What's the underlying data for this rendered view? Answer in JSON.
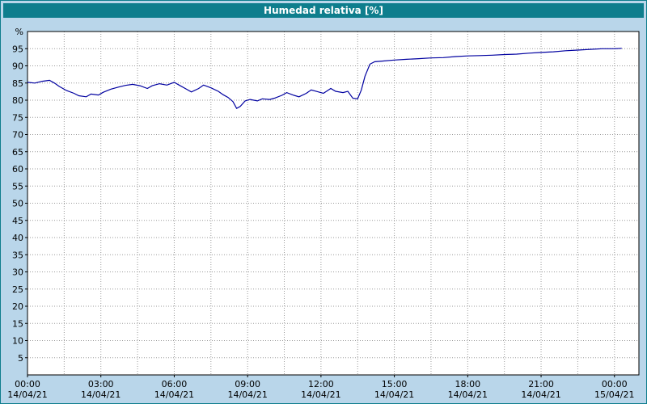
{
  "window": {
    "title": "Humedad relativa [%]"
  },
  "colors": {
    "titlebar": "#0e7e8d",
    "background": "#b9d6ea",
    "plot_bg": "#ffffff",
    "grid": "#9a9a9a",
    "axis": "#000000",
    "line": "#0000a0"
  },
  "chart_data": {
    "type": "line",
    "title": "Humedad relativa [%]",
    "ylabel": "%",
    "ylim": [
      0,
      100
    ],
    "xlim_hours": [
      0,
      25
    ],
    "grid": {
      "y_step": 5,
      "x_step_hours": 1.5,
      "style": "dotted"
    },
    "legend": "none",
    "y_ticks": [
      5,
      10,
      15,
      20,
      25,
      30,
      35,
      40,
      45,
      50,
      55,
      60,
      65,
      70,
      75,
      80,
      85,
      90,
      95
    ],
    "x_ticks": [
      {
        "hour": 0,
        "time": "00:00",
        "date": "14/04/21"
      },
      {
        "hour": 3,
        "time": "03:00",
        "date": "14/04/21"
      },
      {
        "hour": 6,
        "time": "06:00",
        "date": "14/04/21"
      },
      {
        "hour": 9,
        "time": "09:00",
        "date": "14/04/21"
      },
      {
        "hour": 12,
        "time": "12:00",
        "date": "14/04/21"
      },
      {
        "hour": 15,
        "time": "15:00",
        "date": "14/04/21"
      },
      {
        "hour": 18,
        "time": "18:00",
        "date": "14/04/21"
      },
      {
        "hour": 21,
        "time": "21:00",
        "date": "14/04/21"
      },
      {
        "hour": 24,
        "time": "00:00",
        "date": "15/04/21"
      }
    ],
    "series": [
      {
        "name": "Humedad relativa",
        "color": "#0000a0",
        "points": [
          [
            0,
            85.2
          ],
          [
            0.3,
            85.0
          ],
          [
            0.6,
            85.5
          ],
          [
            0.9,
            85.8
          ],
          [
            1.1,
            85.0
          ],
          [
            1.3,
            84.0
          ],
          [
            1.6,
            82.8
          ],
          [
            1.9,
            82.0
          ],
          [
            2.1,
            81.3
          ],
          [
            2.4,
            81.0
          ],
          [
            2.6,
            81.8
          ],
          [
            2.9,
            81.5
          ],
          [
            3.1,
            82.3
          ],
          [
            3.4,
            83.2
          ],
          [
            3.7,
            83.8
          ],
          [
            4.0,
            84.3
          ],
          [
            4.3,
            84.6
          ],
          [
            4.6,
            84.2
          ],
          [
            4.9,
            83.4
          ],
          [
            5.1,
            84.2
          ],
          [
            5.4,
            84.8
          ],
          [
            5.7,
            84.4
          ],
          [
            6.0,
            85.2
          ],
          [
            6.2,
            84.4
          ],
          [
            6.5,
            83.2
          ],
          [
            6.7,
            82.4
          ],
          [
            7.0,
            83.4
          ],
          [
            7.2,
            84.4
          ],
          [
            7.5,
            83.6
          ],
          [
            7.8,
            82.6
          ],
          [
            8.0,
            81.6
          ],
          [
            8.2,
            80.8
          ],
          [
            8.4,
            79.6
          ],
          [
            8.55,
            77.6
          ],
          [
            8.7,
            78.2
          ],
          [
            8.9,
            79.8
          ],
          [
            9.1,
            80.2
          ],
          [
            9.4,
            79.8
          ],
          [
            9.6,
            80.4
          ],
          [
            9.9,
            80.2
          ],
          [
            10.1,
            80.6
          ],
          [
            10.4,
            81.4
          ],
          [
            10.6,
            82.2
          ],
          [
            10.9,
            81.4
          ],
          [
            11.1,
            81.0
          ],
          [
            11.4,
            82.0
          ],
          [
            11.6,
            83.0
          ],
          [
            11.9,
            82.4
          ],
          [
            12.1,
            82.0
          ],
          [
            12.4,
            83.4
          ],
          [
            12.6,
            82.6
          ],
          [
            12.9,
            82.2
          ],
          [
            13.1,
            82.6
          ],
          [
            13.3,
            80.6
          ],
          [
            13.5,
            80.4
          ],
          [
            13.65,
            83.0
          ],
          [
            13.8,
            87.0
          ],
          [
            14.0,
            90.5
          ],
          [
            14.2,
            91.2
          ],
          [
            14.5,
            91.4
          ],
          [
            15.0,
            91.7
          ],
          [
            15.5,
            91.9
          ],
          [
            16.0,
            92.1
          ],
          [
            16.5,
            92.3
          ],
          [
            17.0,
            92.4
          ],
          [
            17.5,
            92.7
          ],
          [
            18.0,
            92.9
          ],
          [
            18.5,
            93.0
          ],
          [
            19.0,
            93.1
          ],
          [
            19.5,
            93.3
          ],
          [
            20.0,
            93.4
          ],
          [
            20.5,
            93.7
          ],
          [
            21.0,
            93.9
          ],
          [
            21.5,
            94.1
          ],
          [
            22.0,
            94.4
          ],
          [
            22.5,
            94.6
          ],
          [
            23.0,
            94.8
          ],
          [
            23.5,
            95.0
          ],
          [
            24.0,
            95.0
          ],
          [
            24.3,
            95.1
          ]
        ]
      }
    ]
  }
}
